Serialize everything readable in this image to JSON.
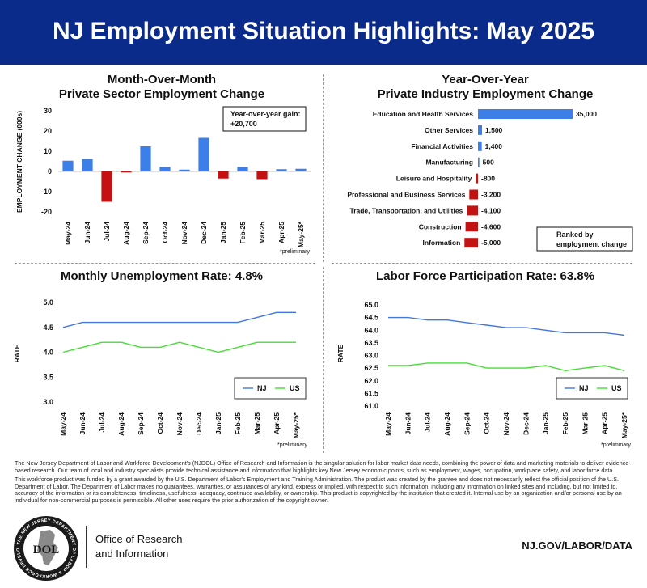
{
  "header": {
    "title": "NJ Employment Situation Highlights: May 2025"
  },
  "charts": {
    "mom": {
      "title_line1": "Month-Over-Month",
      "title_line2": "Private Sector Employment Change",
      "annotation_line1": "Year-over-year gain:",
      "annotation_line2": "+20,700",
      "ylabel": "EMPLOYMENT CHANGE (000s)",
      "note": "*preliminary"
    },
    "yoy": {
      "title_line1": "Year-Over-Year",
      "title_line2": "Private Industry Employment Change",
      "legend_line1": "Ranked by",
      "legend_line2": "employment change"
    },
    "unemp": {
      "title": "Monthly Unemployment Rate: 4.8%",
      "ylabel": "RATE",
      "note": "*preliminary"
    },
    "lfpr": {
      "title": "Labor Force Participation Rate: 63.8%",
      "ylabel": "RATE",
      "note": "*preliminary"
    }
  },
  "footer": {
    "paragraph1": "The New Jersey Department of Labor and Workforce Development's (NJDOL) Office of Research and Information is the singular solution for labor market data needs, combining the power of data and marketing materials to deliver evidence-based research. Our team of local and industry specialists provide technical assistance and information that highlights key New Jersey economic points, such as employment, wages, occupation, workplace safety, and labor force data.",
    "paragraph2": "This workforce product was funded by a grant awarded by the U.S. Department of Labor's Employment and Training Administration. The product was created by the grantee and does not necessarily reflect the official position of the U.S. Department of Labor. The Department of Labor makes no guarantees, warranties, or assurances of any kind, express or implied, with respect to such information, including any information on linked sites and including, but not limited to, accuracy of the information or its completeness, timeliness, usefulness, adequacy, continued availability, or ownership. This product is copyrighted by the institution that created it. Internal use by an organization and/or personal use by an individual for non-commercial purposes is permissible. All other uses require the prior authorization of the copyright owner.",
    "office_line1": "Office of Research",
    "office_line2": "and Information",
    "website": "NJ.GOV/LABOR/DATA",
    "logo_text": "DOL",
    "logo_ring_text": "THE NEW JERSEY DEPARTMENT OF LABOR & WORKFORCE DEVELOPMENT"
  },
  "colors": {
    "banner": "#0b2b8a",
    "positive": "#3c7fe9",
    "negative": "#c41111",
    "nj_line": "#4477dd",
    "us_line": "#44dd33"
  },
  "chart_data": [
    {
      "type": "bar",
      "title": "Month-Over-Month Private Sector Employment Change",
      "ylabel": "EMPLOYMENT CHANGE (000s)",
      "categories": [
        "May-24",
        "Jun-24",
        "Jul-24",
        "Aug-24",
        "Sep-24",
        "Oct-24",
        "Nov-24",
        "Dec-24",
        "Jan-25",
        "Feb-25",
        "Mar-25",
        "Apr-25",
        "May-25*"
      ],
      "values": [
        5.3,
        6.2,
        -15.0,
        -0.5,
        12.4,
        2.2,
        0.9,
        16.6,
        -3.5,
        2.2,
        -3.8,
        1.1,
        1.3
      ],
      "ylim": [
        -20,
        30
      ],
      "yticks": [
        "30",
        "20",
        "10",
        "0",
        "-10",
        "-20"
      ],
      "yticks_values": [
        30,
        20,
        10,
        0,
        -10,
        -20
      ],
      "grid": false
    },
    {
      "type": "bar",
      "orientation": "horizontal",
      "title": "Year-Over-Year Private Industry Employment Change",
      "categories": [
        "Education and Health Services",
        "Other Services",
        "Financial Activities",
        "Manufacturing",
        "Leisure and Hospitality",
        "Professional and Business Services",
        "Trade, Transportation, and Utilities",
        "Construction",
        "Information"
      ],
      "values": [
        35000,
        1500,
        1400,
        500,
        -800,
        -3200,
        -4100,
        -4600,
        -5000
      ],
      "data_labels": [
        "35,000",
        "1,500",
        "1,400",
        "500",
        "-800",
        "-3,200",
        "-4,100",
        "-4,600",
        "-5,000"
      ]
    },
    {
      "type": "line",
      "title": "Monthly Unemployment Rate: 4.8%",
      "ylabel": "RATE",
      "x": [
        "May-24",
        "Jun-24",
        "Jul-24",
        "Aug-24",
        "Sep-24",
        "Oct-24",
        "Nov-24",
        "Dec-24",
        "Jan-25",
        "Feb-25",
        "Mar-25",
        "Apr-25",
        "May-25*"
      ],
      "series": [
        {
          "name": "NJ",
          "values": [
            4.5,
            4.6,
            4.6,
            4.6,
            4.6,
            4.6,
            4.6,
            4.6,
            4.6,
            4.6,
            4.7,
            4.8,
            4.8
          ]
        },
        {
          "name": "US",
          "values": [
            4.0,
            4.1,
            4.2,
            4.2,
            4.1,
            4.1,
            4.2,
            4.1,
            4.0,
            4.1,
            4.2,
            4.2,
            4.2
          ]
        }
      ],
      "ylim": [
        3.0,
        5.0
      ],
      "yticks": [
        "5.0",
        "4.5",
        "4.0",
        "3.5",
        "3.0"
      ],
      "yticks_values": [
        5.0,
        4.5,
        4.0,
        3.5,
        3.0
      ],
      "legend": "bottom-right",
      "grid": false
    },
    {
      "type": "line",
      "title": "Labor Force Participation Rate: 63.8%",
      "ylabel": "RATE",
      "x": [
        "May-24",
        "Jun-24",
        "Jul-24",
        "Aug-24",
        "Sep-24",
        "Oct-24",
        "Nov-24",
        "Dec-24",
        "Jan-25",
        "Feb-25",
        "Mar-25",
        "Apr-25",
        "May-25*"
      ],
      "series": [
        {
          "name": "NJ",
          "values": [
            64.5,
            64.5,
            64.4,
            64.4,
            64.3,
            64.2,
            64.1,
            64.1,
            64.0,
            63.9,
            63.9,
            63.9,
            63.8
          ]
        },
        {
          "name": "US",
          "values": [
            62.6,
            62.6,
            62.7,
            62.7,
            62.7,
            62.5,
            62.5,
            62.5,
            62.6,
            62.4,
            62.5,
            62.6,
            62.4
          ]
        }
      ],
      "ylim": [
        61.0,
        65.0
      ],
      "yticks": [
        "65.0",
        "64.5",
        "64.0",
        "63.5",
        "63.0",
        "62.5",
        "62.0",
        "61.5",
        "61.0"
      ],
      "yticks_values": [
        65.0,
        64.5,
        64.0,
        63.5,
        63.0,
        62.5,
        62.0,
        61.5,
        61.0
      ],
      "legend": "bottom-right",
      "grid": false
    }
  ]
}
